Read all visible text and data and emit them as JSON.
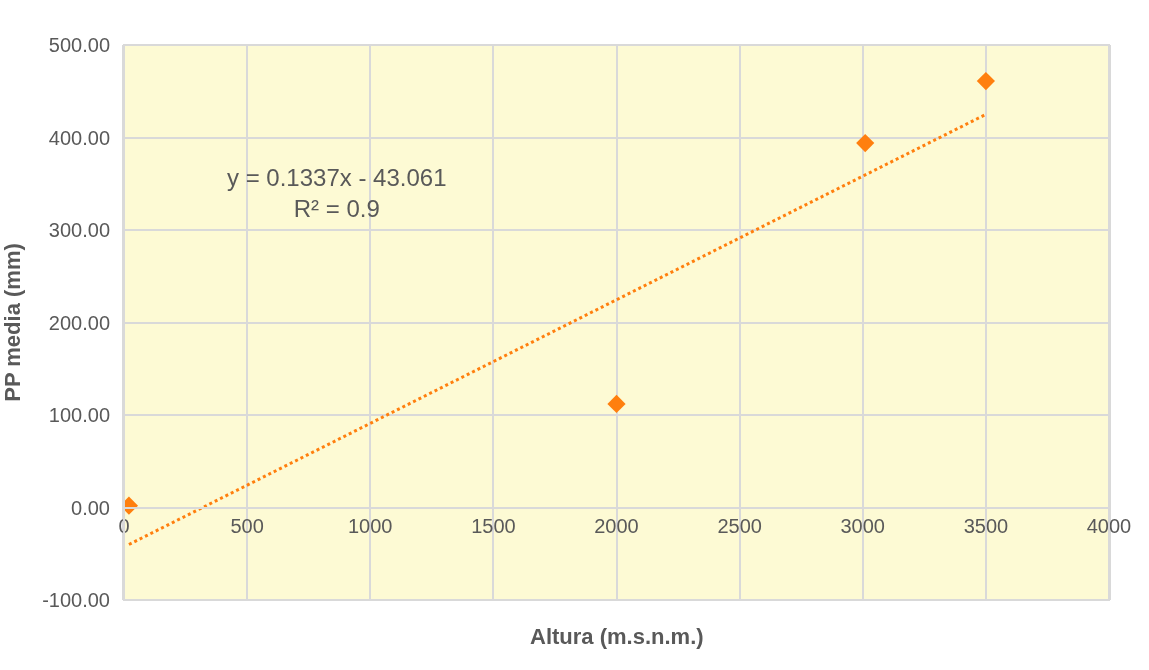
{
  "chart_data": {
    "type": "scatter",
    "xlabel": "Altura (m.s.n.m.)",
    "ylabel": "PP media (mm)",
    "x": [
      20,
      2000,
      3010,
      3500
    ],
    "series": [
      {
        "color": "#ff7f0e",
        "marker": "diamond",
        "values": [
          2,
          112,
          394,
          461
        ]
      },
      {
        "type": "line",
        "color": "#ff7f0e",
        "line_style": "dotted",
        "x": [
          20,
          3500
        ],
        "values": [
          -40,
          425
        ]
      }
    ],
    "annotations": [
      "y = 0.1337x - 43.061\nR² = 0.9"
    ],
    "xlim": [
      0,
      4000
    ],
    "xticks": [
      0,
      500,
      1000,
      1500,
      2000,
      2500,
      3000,
      3500,
      4000
    ],
    "ylim": [
      -100,
      500
    ],
    "yticks": [
      {
        "value": -100,
        "label": "-100.00"
      },
      {
        "value": 0,
        "label": "0.00"
      },
      {
        "value": 100,
        "label": "100.00"
      },
      {
        "value": 200,
        "label": "200.00"
      },
      {
        "value": 300,
        "label": "300.00"
      },
      {
        "value": 400,
        "label": "400.00"
      },
      {
        "value": 500,
        "label": "500.00"
      }
    ],
    "grid": true
  }
}
